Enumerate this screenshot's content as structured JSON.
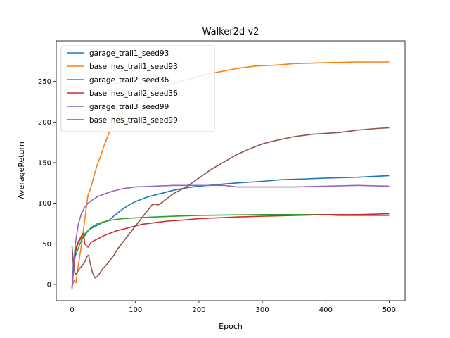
{
  "chart_data": {
    "type": "line",
    "title": "Walker2d-v2",
    "xlabel": "Epoch",
    "ylabel": "AverageReturn",
    "xlim": [
      -25,
      525
    ],
    "ylim": [
      -20,
      300
    ],
    "xticks": [
      0,
      100,
      200,
      300,
      400,
      500
    ],
    "yticks": [
      0,
      50,
      100,
      150,
      200,
      250
    ],
    "grid": false,
    "legend": "top-left",
    "series": [
      {
        "name": "garage_trail1_seed93",
        "color": "#1f77b4",
        "points": [
          [
            0,
            -5
          ],
          [
            2,
            25
          ],
          [
            5,
            40
          ],
          [
            10,
            52
          ],
          [
            15,
            58
          ],
          [
            20,
            62
          ],
          [
            25,
            66
          ],
          [
            30,
            69
          ],
          [
            40,
            73
          ],
          [
            50,
            77
          ],
          [
            58,
            79
          ],
          [
            70,
            87
          ],
          [
            80,
            93
          ],
          [
            90,
            98
          ],
          [
            100,
            102
          ],
          [
            120,
            108
          ],
          [
            140,
            112
          ],
          [
            160,
            116
          ],
          [
            180,
            119
          ],
          [
            200,
            121
          ],
          [
            230,
            123
          ],
          [
            260,
            125
          ],
          [
            300,
            127
          ],
          [
            330,
            129
          ],
          [
            370,
            130
          ],
          [
            400,
            131
          ],
          [
            450,
            132
          ],
          [
            500,
            134
          ]
        ]
      },
      {
        "name": "baselines_trail1_seed93",
        "color": "#ff7f0e",
        "points": [
          [
            0,
            -3
          ],
          [
            3,
            5
          ],
          [
            6,
            2
          ],
          [
            10,
            25
          ],
          [
            15,
            50
          ],
          [
            20,
            80
          ],
          [
            25,
            110
          ],
          [
            30,
            120
          ],
          [
            35,
            135
          ],
          [
            40,
            148
          ],
          [
            45,
            158
          ],
          [
            50,
            170
          ],
          [
            55,
            180
          ],
          [
            60,
            190
          ],
          [
            70,
            200
          ],
          [
            80,
            210
          ],
          [
            90,
            218
          ],
          [
            100,
            226
          ],
          [
            120,
            234
          ],
          [
            140,
            242
          ],
          [
            160,
            248
          ],
          [
            180,
            252
          ],
          [
            200,
            256
          ],
          [
            220,
            260
          ],
          [
            240,
            263
          ],
          [
            260,
            266
          ],
          [
            290,
            269
          ],
          [
            320,
            270
          ],
          [
            350,
            272
          ],
          [
            400,
            273
          ],
          [
            450,
            274
          ],
          [
            500,
            274
          ]
        ]
      },
      {
        "name": "garage_trail2_seed36",
        "color": "#2ca02c",
        "points": [
          [
            0,
            -3
          ],
          [
            2,
            20
          ],
          [
            5,
            35
          ],
          [
            10,
            45
          ],
          [
            15,
            55
          ],
          [
            20,
            60
          ],
          [
            25,
            66
          ],
          [
            30,
            70
          ],
          [
            40,
            75
          ],
          [
            50,
            77
          ],
          [
            60,
            79
          ],
          [
            80,
            81
          ],
          [
            100,
            82
          ],
          [
            130,
            83
          ],
          [
            160,
            84
          ],
          [
            200,
            85
          ],
          [
            250,
            85.5
          ],
          [
            300,
            86
          ],
          [
            350,
            86
          ],
          [
            400,
            86
          ],
          [
            420,
            85
          ],
          [
            450,
            85
          ],
          [
            500,
            85
          ]
        ]
      },
      {
        "name": "baselines_trail2_seed36",
        "color": "#d62728",
        "points": [
          [
            0,
            -5
          ],
          [
            3,
            25
          ],
          [
            6,
            45
          ],
          [
            10,
            53
          ],
          [
            15,
            60
          ],
          [
            18,
            63
          ],
          [
            20,
            50
          ],
          [
            25,
            46
          ],
          [
            30,
            52
          ],
          [
            40,
            56
          ],
          [
            50,
            60
          ],
          [
            60,
            63
          ],
          [
            70,
            66
          ],
          [
            80,
            68
          ],
          [
            90,
            70
          ],
          [
            100,
            72
          ],
          [
            110,
            74
          ],
          [
            130,
            76
          ],
          [
            150,
            78
          ],
          [
            170,
            79
          ],
          [
            200,
            81
          ],
          [
            230,
            82
          ],
          [
            260,
            83
          ],
          [
            300,
            84
          ],
          [
            350,
            85
          ],
          [
            400,
            86
          ],
          [
            450,
            86
          ],
          [
            500,
            87
          ]
        ]
      },
      {
        "name": "garage_trail3_seed99",
        "color": "#9467bd",
        "points": [
          [
            0,
            -5
          ],
          [
            2,
            20
          ],
          [
            5,
            50
          ],
          [
            10,
            75
          ],
          [
            15,
            88
          ],
          [
            20,
            95
          ],
          [
            25,
            100
          ],
          [
            30,
            103
          ],
          [
            40,
            108
          ],
          [
            50,
            111
          ],
          [
            60,
            114
          ],
          [
            80,
            118
          ],
          [
            100,
            120
          ],
          [
            130,
            121
          ],
          [
            160,
            122
          ],
          [
            200,
            122
          ],
          [
            240,
            122
          ],
          [
            260,
            120
          ],
          [
            300,
            120
          ],
          [
            350,
            120
          ],
          [
            400,
            121
          ],
          [
            450,
            122
          ],
          [
            500,
            121
          ]
        ]
      },
      {
        "name": "baselines_trail3_seed99",
        "color": "#8c564b",
        "points": [
          [
            0,
            47
          ],
          [
            2,
            25
          ],
          [
            5,
            12
          ],
          [
            8,
            15
          ],
          [
            12,
            20
          ],
          [
            16,
            23
          ],
          [
            20,
            28
          ],
          [
            24,
            35
          ],
          [
            26,
            36
          ],
          [
            28,
            28
          ],
          [
            32,
            15
          ],
          [
            36,
            8
          ],
          [
            40,
            10
          ],
          [
            44,
            14
          ],
          [
            48,
            19
          ],
          [
            52,
            22
          ],
          [
            56,
            26
          ],
          [
            60,
            30
          ],
          [
            66,
            36
          ],
          [
            72,
            44
          ],
          [
            80,
            52
          ],
          [
            90,
            62
          ],
          [
            100,
            72
          ],
          [
            110,
            82
          ],
          [
            120,
            92
          ],
          [
            126,
            98
          ],
          [
            130,
            99
          ],
          [
            136,
            98
          ],
          [
            140,
            100
          ],
          [
            150,
            106
          ],
          [
            160,
            112
          ],
          [
            180,
            120
          ],
          [
            200,
            131
          ],
          [
            220,
            142
          ],
          [
            240,
            151
          ],
          [
            260,
            160
          ],
          [
            280,
            167
          ],
          [
            300,
            173
          ],
          [
            320,
            177
          ],
          [
            350,
            182
          ],
          [
            380,
            185
          ],
          [
            420,
            187
          ],
          [
            450,
            190
          ],
          [
            480,
            192
          ],
          [
            500,
            193
          ]
        ]
      }
    ]
  }
}
